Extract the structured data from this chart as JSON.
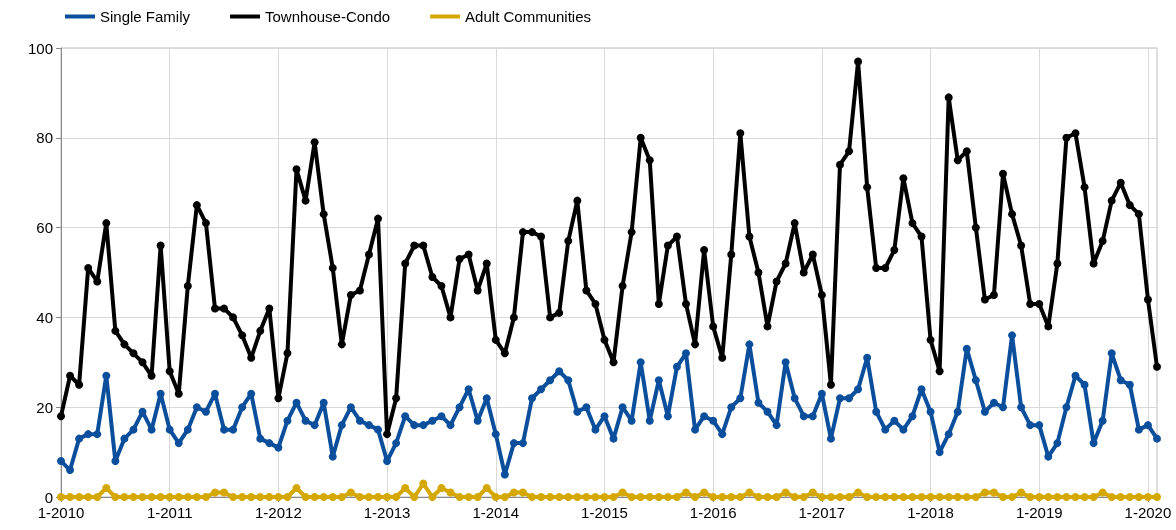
{
  "chart_data": {
    "type": "line",
    "categories": [
      "1-2010",
      null,
      null,
      null,
      null,
      null,
      null,
      null,
      null,
      null,
      null,
      null,
      "1-2011",
      null,
      null,
      null,
      null,
      null,
      null,
      null,
      null,
      null,
      null,
      null,
      "1-2012",
      null,
      null,
      null,
      null,
      null,
      null,
      null,
      null,
      null,
      null,
      null,
      "1-2013",
      null,
      null,
      null,
      null,
      null,
      null,
      null,
      null,
      null,
      null,
      null,
      "1-2014",
      null,
      null,
      null,
      null,
      null,
      null,
      null,
      null,
      null,
      null,
      null,
      "1-2015",
      null,
      null,
      null,
      null,
      null,
      null,
      null,
      null,
      null,
      null,
      null,
      "1-2016",
      null,
      null,
      null,
      null,
      null,
      null,
      null,
      null,
      null,
      null,
      null,
      "1-2017",
      null,
      null,
      null,
      null,
      null,
      null,
      null,
      null,
      null,
      null,
      null,
      "1-2018",
      null,
      null,
      null,
      null,
      null,
      null,
      null,
      null,
      null,
      null,
      null,
      "1-2019",
      null,
      null,
      null,
      null,
      null,
      null,
      null,
      null,
      null,
      null,
      null,
      "1-2020",
      null
    ],
    "series": [
      {
        "name": "Single Family",
        "color": "#0b4f9c",
        "values": [
          8,
          6,
          13,
          14,
          14,
          27,
          8,
          13,
          15,
          19,
          15,
          23,
          15,
          12,
          15,
          20,
          19,
          23,
          15,
          15,
          20,
          23,
          13,
          12,
          11,
          17,
          21,
          17,
          16,
          21,
          9,
          16,
          20,
          17,
          16,
          15,
          8,
          12,
          18,
          16,
          16,
          17,
          18,
          16,
          20,
          24,
          17,
          22,
          14,
          5,
          12,
          12,
          22,
          24,
          26,
          28,
          26,
          19,
          20,
          15,
          18,
          13,
          20,
          17,
          30,
          17,
          26,
          18,
          29,
          32,
          15,
          18,
          17,
          14,
          20,
          22,
          34,
          21,
          19,
          16,
          30,
          22,
          18,
          18,
          23,
          13,
          22,
          22,
          24,
          31,
          19,
          15,
          17,
          15,
          18,
          24,
          19,
          10,
          14,
          19,
          33,
          26,
          19,
          21,
          20,
          36,
          20,
          16,
          16,
          9,
          12,
          20,
          27,
          25,
          12,
          17,
          32,
          26,
          25,
          15,
          16,
          13
        ]
      },
      {
        "name": "Townhouse-Condo",
        "color": "#000000",
        "values": [
          18,
          27,
          25,
          51,
          48,
          61,
          37,
          34,
          32,
          30,
          27,
          56,
          28,
          23,
          47,
          65,
          61,
          42,
          42,
          40,
          36,
          31,
          37,
          42,
          22,
          32,
          73,
          66,
          79,
          63,
          51,
          34,
          45,
          46,
          54,
          62,
          14,
          22,
          52,
          56,
          56,
          49,
          47,
          40,
          53,
          54,
          46,
          52,
          35,
          32,
          40,
          59,
          59,
          58,
          40,
          41,
          57,
          66,
          46,
          43,
          35,
          30,
          47,
          59,
          80,
          75,
          43,
          56,
          58,
          43,
          34,
          55,
          38,
          31,
          54,
          81,
          58,
          50,
          38,
          48,
          52,
          61,
          50,
          54,
          45,
          25,
          74,
          77,
          97,
          69,
          51,
          51,
          55,
          71,
          61,
          58,
          35,
          28,
          89,
          75,
          77,
          60,
          44,
          45,
          72,
          63,
          56,
          43,
          43,
          38,
          52,
          80,
          81,
          69,
          52,
          57,
          66,
          70,
          65,
          63,
          44,
          29
        ]
      },
      {
        "name": "Adult Communities",
        "color": "#d4a800",
        "values": [
          0,
          0,
          0,
          0,
          0,
          2,
          0,
          0,
          0,
          0,
          0,
          0,
          0,
          0,
          0,
          0,
          0,
          1,
          1,
          0,
          0,
          0,
          0,
          0,
          0,
          0,
          2,
          0,
          0,
          0,
          0,
          0,
          1,
          0,
          0,
          0,
          0,
          0,
          2,
          0,
          3,
          0,
          2,
          1,
          0,
          0,
          0,
          2,
          0,
          0,
          1,
          1,
          0,
          0,
          0,
          0,
          0,
          0,
          0,
          0,
          0,
          0,
          1,
          0,
          0,
          0,
          0,
          0,
          0,
          1,
          0,
          1,
          0,
          0,
          0,
          0,
          1,
          0,
          0,
          0,
          1,
          0,
          0,
          1,
          0,
          0,
          0,
          0,
          1,
          0,
          0,
          0,
          0,
          0,
          0,
          0,
          0,
          0,
          0,
          0,
          0,
          0,
          1,
          1,
          0,
          0,
          1,
          0,
          0,
          0,
          0,
          0,
          0,
          0,
          0,
          1,
          0,
          0,
          0,
          0,
          0,
          0
        ]
      }
    ],
    "ylim": [
      0,
      100
    ],
    "yticks": [
      0,
      20,
      40,
      60,
      80,
      100
    ],
    "grid": true,
    "legend": "top left",
    "marker": "circle",
    "line_style": "solid"
  }
}
